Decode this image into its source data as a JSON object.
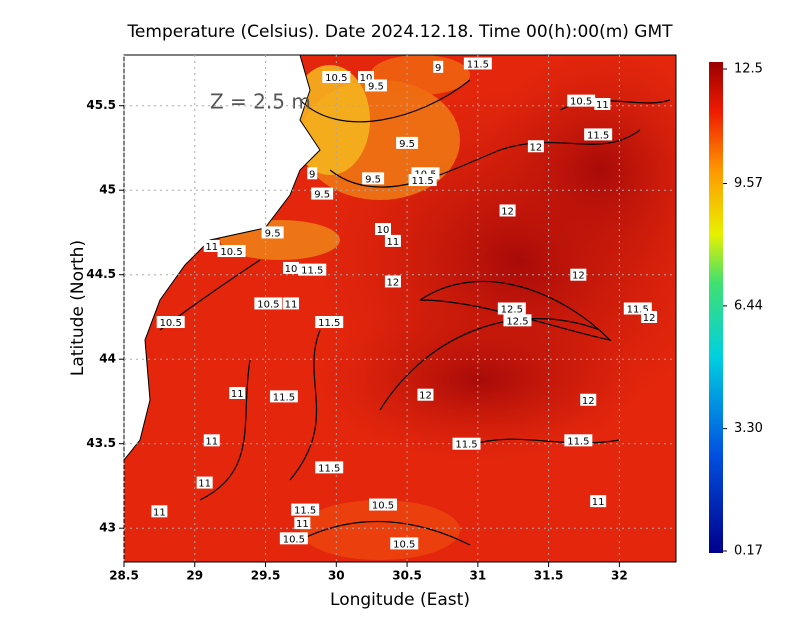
{
  "chart_data": {
    "type": "heatmap",
    "title": "Temperature (Celsius). Date 2024.12.18. Time 00(h):00(m) GMT",
    "xlabel": "Longitude (East)",
    "ylabel": "Latitude (North)",
    "annotation": "Z = 2.5 m",
    "xlim": [
      28.5,
      32.4
    ],
    "ylim": [
      42.8,
      45.8
    ],
    "xticks": [
      28.5,
      29,
      29.5,
      30,
      30.5,
      31,
      31.5,
      32
    ],
    "yticks": [
      43,
      43.5,
      44,
      44.5,
      45,
      45.5
    ],
    "grid": true,
    "colorbar": {
      "lim": [
        0.17,
        12.5
      ],
      "ticks": [
        0.17,
        {
          "value": 3.3,
          "label": "3.30"
        },
        6.44,
        9.57,
        12.5
      ]
    },
    "contour_labels": [
      {
        "value": 10.5,
        "x": 30.0,
        "y": 45.67
      },
      {
        "value": 10,
        "x": 30.21,
        "y": 45.67
      },
      {
        "value": 9.5,
        "x": 30.28,
        "y": 45.62
      },
      {
        "value": 9,
        "x": 30.72,
        "y": 45.73
      },
      {
        "value": 11.5,
        "x": 31.0,
        "y": 45.75
      },
      {
        "value": 10.5,
        "x": 31.73,
        "y": 45.53
      },
      {
        "value": 11,
        "x": 31.88,
        "y": 45.51
      },
      {
        "value": 11.5,
        "x": 31.85,
        "y": 45.33
      },
      {
        "value": 12,
        "x": 31.41,
        "y": 45.26
      },
      {
        "value": 9.5,
        "x": 30.5,
        "y": 45.28
      },
      {
        "value": 9,
        "x": 29.83,
        "y": 45.1
      },
      {
        "value": 9.5,
        "x": 30.26,
        "y": 45.07
      },
      {
        "value": 10.5,
        "x": 30.63,
        "y": 45.1
      },
      {
        "value": 11.5,
        "x": 30.61,
        "y": 45.06
      },
      {
        "value": 9.5,
        "x": 29.9,
        "y": 44.98
      },
      {
        "value": 12,
        "x": 31.21,
        "y": 44.88
      },
      {
        "value": 9.5,
        "x": 29.55,
        "y": 44.75
      },
      {
        "value": 10,
        "x": 30.33,
        "y": 44.77
      },
      {
        "value": 11,
        "x": 30.4,
        "y": 44.7
      },
      {
        "value": 11,
        "x": 29.12,
        "y": 44.67
      },
      {
        "value": 10.5,
        "x": 29.26,
        "y": 44.64
      },
      {
        "value": 10,
        "x": 29.68,
        "y": 44.54
      },
      {
        "value": 11.5,
        "x": 29.83,
        "y": 44.53
      },
      {
        "value": 12,
        "x": 30.4,
        "y": 44.46
      },
      {
        "value": 12,
        "x": 31.71,
        "y": 44.5
      },
      {
        "value": 10.5,
        "x": 29.52,
        "y": 44.33
      },
      {
        "value": 11,
        "x": 29.68,
        "y": 44.33
      },
      {
        "value": 12.5,
        "x": 31.24,
        "y": 44.3
      },
      {
        "value": 12.5,
        "x": 31.28,
        "y": 44.23
      },
      {
        "value": 11.5,
        "x": 32.13,
        "y": 44.3
      },
      {
        "value": 12,
        "x": 32.21,
        "y": 44.25
      },
      {
        "value": 10.5,
        "x": 28.83,
        "y": 44.22
      },
      {
        "value": 11.5,
        "x": 29.95,
        "y": 44.22
      },
      {
        "value": 11,
        "x": 29.3,
        "y": 43.8
      },
      {
        "value": 11.5,
        "x": 29.63,
        "y": 43.78
      },
      {
        "value": 12,
        "x": 30.63,
        "y": 43.79
      },
      {
        "value": 12,
        "x": 31.78,
        "y": 43.76
      },
      {
        "value": 11,
        "x": 29.12,
        "y": 43.52
      },
      {
        "value": 11.5,
        "x": 30.92,
        "y": 43.5
      },
      {
        "value": 11.5,
        "x": 31.71,
        "y": 43.52
      },
      {
        "value": 11.5,
        "x": 29.95,
        "y": 43.36
      },
      {
        "value": 11,
        "x": 29.07,
        "y": 43.27
      },
      {
        "value": 10.5,
        "x": 30.33,
        "y": 43.14
      },
      {
        "value": 11,
        "x": 31.85,
        "y": 43.16
      },
      {
        "value": 11,
        "x": 28.75,
        "y": 43.1
      },
      {
        "value": 11.5,
        "x": 29.78,
        "y": 43.11
      },
      {
        "value": 11,
        "x": 29.76,
        "y": 43.03
      },
      {
        "value": 10.5,
        "x": 29.7,
        "y": 42.94
      },
      {
        "value": 10.5,
        "x": 30.48,
        "y": 42.91
      }
    ]
  }
}
